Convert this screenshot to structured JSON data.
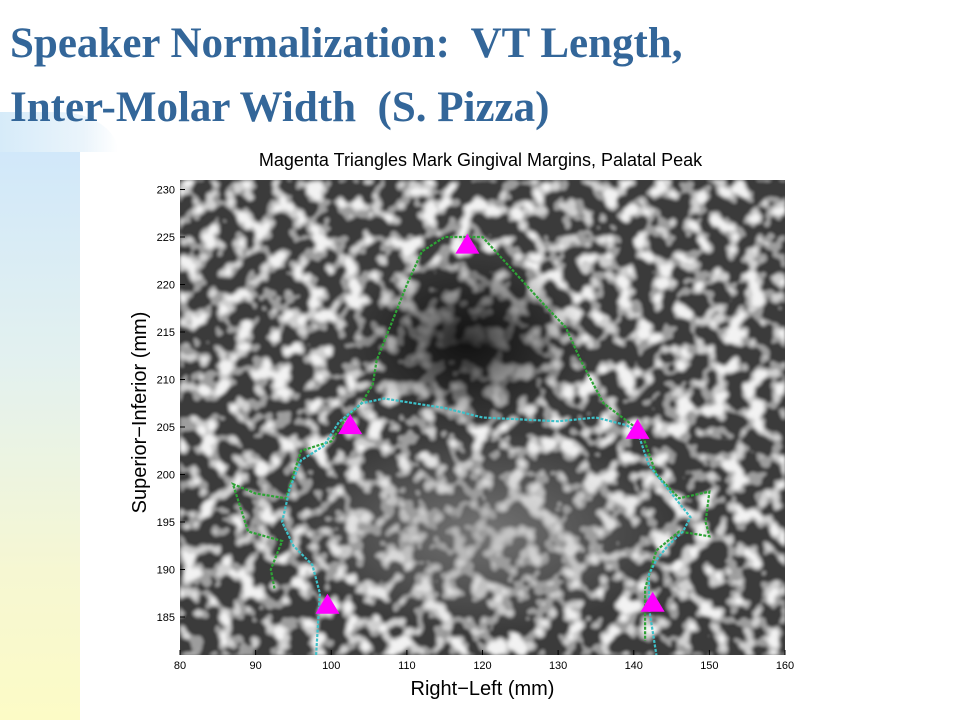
{
  "slide": {
    "title_line1": "Speaker Normalization:  VT Length,",
    "title_line2": "Inter-Molar Width  (S. Pizza)",
    "title_color": "#336699"
  },
  "chart_data": {
    "type": "scatter",
    "title": "Magenta Triangles Mark Gingival Margins, Palatal Peak",
    "xlabel": "Right−Left (mm)",
    "ylabel": "Superior−Inferior (mm)",
    "xlim": [
      80,
      160
    ],
    "ylim": [
      181,
      231
    ],
    "xticks": [
      80,
      90,
      100,
      110,
      120,
      130,
      140,
      150,
      160
    ],
    "yticks": [
      185,
      190,
      195,
      200,
      205,
      210,
      215,
      220,
      225,
      230
    ],
    "grid": false,
    "background": "grayscale MRI coronal slice",
    "markers": {
      "shape": "triangle",
      "color": "#ff00ff",
      "points": [
        {
          "x": 118,
          "y": 224.3
        },
        {
          "x": 102.5,
          "y": 205.3
        },
        {
          "x": 140.5,
          "y": 204.8
        },
        {
          "x": 99.5,
          "y": 186.4
        },
        {
          "x": 142.5,
          "y": 186.6
        }
      ]
    },
    "series": [
      {
        "color": "#2ea336",
        "points": [
          [
            92.5,
            188
          ],
          [
            92,
            190
          ],
          [
            93.5,
            193
          ],
          [
            89,
            194
          ],
          [
            87,
            199
          ],
          [
            90,
            198
          ],
          [
            94,
            197.5
          ],
          [
            96,
            202.5
          ],
          [
            100,
            203.5
          ],
          [
            102,
            206
          ],
          [
            104,
            207.5
          ],
          [
            105.5,
            209.5
          ],
          [
            106,
            212
          ],
          [
            108,
            216
          ],
          [
            110,
            220
          ],
          [
            112,
            223.5
          ],
          [
            115,
            225
          ],
          [
            120,
            225
          ],
          [
            124,
            221.5
          ],
          [
            128,
            218
          ],
          [
            131,
            215.5
          ],
          [
            133,
            212
          ],
          [
            135,
            209
          ],
          [
            136,
            207.5
          ],
          [
            138.5,
            206
          ],
          [
            141,
            204.5
          ],
          [
            143,
            200
          ],
          [
            146,
            197.5
          ],
          [
            150,
            198.2
          ],
          [
            149.5,
            195
          ],
          [
            150,
            193.5
          ],
          [
            146,
            194
          ],
          [
            143,
            192
          ],
          [
            141.5,
            188
          ],
          [
            141.5,
            182.5
          ]
        ]
      },
      {
        "color": "#3ec0c8",
        "points": [
          [
            98,
            181
          ],
          [
            98.5,
            187.5
          ],
          [
            97.5,
            190.5
          ],
          [
            95,
            192.5
          ],
          [
            93.5,
            195
          ],
          [
            94.5,
            198.5
          ],
          [
            96,
            201.5
          ],
          [
            99,
            203
          ],
          [
            101,
            205.5
          ],
          [
            104,
            207.5
          ],
          [
            107,
            208
          ],
          [
            111,
            207.5
          ],
          [
            115,
            207
          ],
          [
            120,
            206
          ],
          [
            125,
            205.8
          ],
          [
            130,
            205.6
          ],
          [
            135,
            206
          ],
          [
            139,
            205.2
          ],
          [
            140.5,
            204.5
          ],
          [
            142,
            201
          ],
          [
            144,
            199
          ],
          [
            146,
            197
          ],
          [
            147.5,
            195.5
          ],
          [
            146.5,
            194
          ],
          [
            144.5,
            192.5
          ],
          [
            143,
            191
          ],
          [
            142,
            189.5
          ],
          [
            142,
            186
          ],
          [
            143,
            181
          ]
        ]
      }
    ]
  }
}
